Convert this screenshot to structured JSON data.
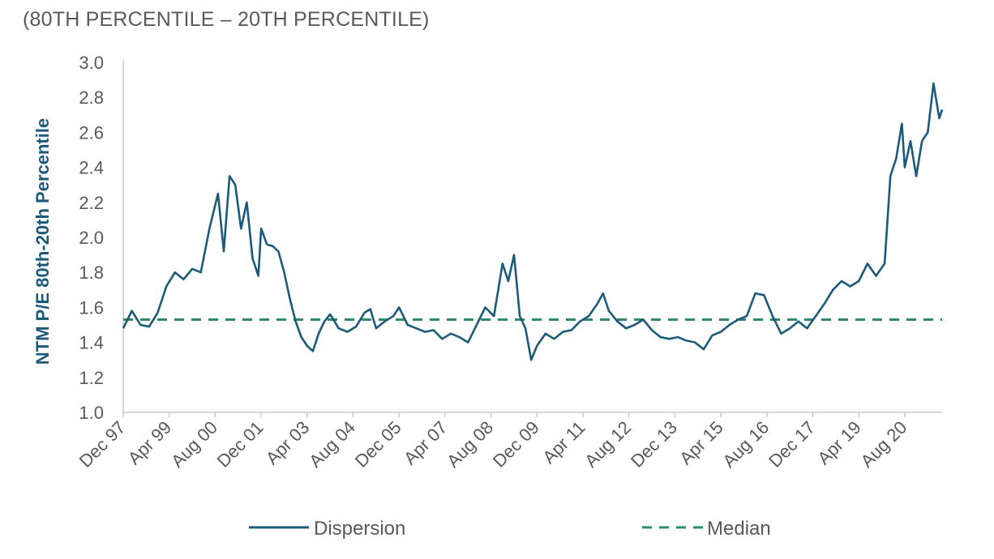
{
  "subtitle": "(80TH PERCENTILE – 20TH PERCENTILE)",
  "chart_data": {
    "type": "line",
    "title": "",
    "subtitle": "(80TH PERCENTILE – 20TH PERCENTILE)",
    "xlabel": "",
    "ylabel": "NTM P/E 80th-20th Percentile",
    "ylim": [
      1.0,
      3.0
    ],
    "yticks": [
      "1.0",
      "1.2",
      "1.4",
      "1.6",
      "1.8",
      "2.0",
      "2.2",
      "2.4",
      "2.6",
      "2.8",
      "3.0"
    ],
    "xticks": [
      "Dec 97",
      "Apr 99",
      "Aug 00",
      "Dec 01",
      "Apr 03",
      "Aug 04",
      "Dec 05",
      "Apr 07",
      "Aug 08",
      "Dec 09",
      "Apr 11",
      "Aug 12",
      "Dec 13",
      "Apr 15",
      "Aug 16",
      "Dec 17",
      "Apr 19",
      "Aug 20"
    ],
    "grid": false,
    "legend": "bottom",
    "colors": {
      "dispersion": "#1b5a7a",
      "median": "#2e8b6a"
    },
    "series": [
      {
        "name": "Dispersion",
        "style": "solid",
        "points": [
          [
            "Dec 97",
            1.48
          ],
          [
            "Mar 98",
            1.58
          ],
          [
            "Jun 98",
            1.5
          ],
          [
            "Sep 98",
            1.49
          ],
          [
            "Dec 98",
            1.57
          ],
          [
            "Mar 99",
            1.72
          ],
          [
            "Jun 99",
            1.8
          ],
          [
            "Sep 99",
            1.76
          ],
          [
            "Dec 99",
            1.82
          ],
          [
            "Mar 00",
            1.8
          ],
          [
            "Jun 00",
            2.05
          ],
          [
            "Sep 00",
            2.25
          ],
          [
            "Nov 00",
            1.92
          ],
          [
            "Jan 01",
            2.35
          ],
          [
            "Mar 01",
            2.3
          ],
          [
            "May 01",
            2.05
          ],
          [
            "Jul 01",
            2.2
          ],
          [
            "Sep 01",
            1.88
          ],
          [
            "Nov 01",
            1.78
          ],
          [
            "Dec 01",
            2.05
          ],
          [
            "Feb 02",
            1.96
          ],
          [
            "Apr 02",
            1.95
          ],
          [
            "Jun 02",
            1.92
          ],
          [
            "Aug 02",
            1.8
          ],
          [
            "Oct 02",
            1.65
          ],
          [
            "Dec 02",
            1.52
          ],
          [
            "Feb 03",
            1.43
          ],
          [
            "Apr 03",
            1.38
          ],
          [
            "Jun 03",
            1.35
          ],
          [
            "Aug 03",
            1.45
          ],
          [
            "Oct 03",
            1.52
          ],
          [
            "Dec 03",
            1.56
          ],
          [
            "Mar 04",
            1.48
          ],
          [
            "Jun 04",
            1.46
          ],
          [
            "Sep 04",
            1.49
          ],
          [
            "Dec 04",
            1.57
          ],
          [
            "Feb 05",
            1.59
          ],
          [
            "Apr 05",
            1.48
          ],
          [
            "Jul 05",
            1.52
          ],
          [
            "Oct 05",
            1.55
          ],
          [
            "Dec 05",
            1.6
          ],
          [
            "Mar 06",
            1.5
          ],
          [
            "Jun 06",
            1.48
          ],
          [
            "Sep 06",
            1.46
          ],
          [
            "Dec 06",
            1.47
          ],
          [
            "Mar 07",
            1.42
          ],
          [
            "Jun 07",
            1.45
          ],
          [
            "Sep 07",
            1.43
          ],
          [
            "Dec 07",
            1.4
          ],
          [
            "Mar 08",
            1.5
          ],
          [
            "Jun 08",
            1.6
          ],
          [
            "Sep 08",
            1.55
          ],
          [
            "Dec 08",
            1.85
          ],
          [
            "Feb 09",
            1.75
          ],
          [
            "Apr 09",
            1.9
          ],
          [
            "Jun 09",
            1.55
          ],
          [
            "Aug 09",
            1.48
          ],
          [
            "Oct 09",
            1.3
          ],
          [
            "Dec 09",
            1.38
          ],
          [
            "Mar 10",
            1.45
          ],
          [
            "Jun 10",
            1.42
          ],
          [
            "Sep 10",
            1.46
          ],
          [
            "Dec 10",
            1.47
          ],
          [
            "Mar 11",
            1.52
          ],
          [
            "Jun 11",
            1.55
          ],
          [
            "Sep 11",
            1.62
          ],
          [
            "Nov 11",
            1.68
          ],
          [
            "Jan 12",
            1.58
          ],
          [
            "Apr 12",
            1.52
          ],
          [
            "Jul 12",
            1.48
          ],
          [
            "Oct 12",
            1.5
          ],
          [
            "Jan 13",
            1.53
          ],
          [
            "Apr 13",
            1.47
          ],
          [
            "Jul 13",
            1.43
          ],
          [
            "Oct 13",
            1.42
          ],
          [
            "Jan 14",
            1.43
          ],
          [
            "Apr 14",
            1.41
          ],
          [
            "Jul 14",
            1.4
          ],
          [
            "Oct 14",
            1.36
          ],
          [
            "Jan 15",
            1.44
          ],
          [
            "Apr 15",
            1.46
          ],
          [
            "Jul 15",
            1.5
          ],
          [
            "Oct 15",
            1.53
          ],
          [
            "Jan 16",
            1.55
          ],
          [
            "Apr 16",
            1.68
          ],
          [
            "Jul 16",
            1.67
          ],
          [
            "Oct 16",
            1.55
          ],
          [
            "Jan 17",
            1.45
          ],
          [
            "Apr 17",
            1.48
          ],
          [
            "Jul 17",
            1.52
          ],
          [
            "Oct 17",
            1.48
          ],
          [
            "Jan 18",
            1.55
          ],
          [
            "Apr 18",
            1.62
          ],
          [
            "Jul 18",
            1.7
          ],
          [
            "Oct 18",
            1.75
          ],
          [
            "Jan 19",
            1.72
          ],
          [
            "Apr 19",
            1.75
          ],
          [
            "Jul 19",
            1.85
          ],
          [
            "Oct 19",
            1.78
          ],
          [
            "Jan 20",
            1.85
          ],
          [
            "Mar 20",
            2.35
          ],
          [
            "May 20",
            2.45
          ],
          [
            "Jul 20",
            2.65
          ],
          [
            "Aug 20",
            2.4
          ],
          [
            "Oct 20",
            2.55
          ],
          [
            "Dec 20",
            2.35
          ],
          [
            "Feb 21",
            2.55
          ],
          [
            "Apr 21",
            2.6
          ],
          [
            "Jun 21",
            2.88
          ],
          [
            "Aug 21",
            2.68
          ],
          [
            "Sep 21",
            2.73
          ]
        ]
      },
      {
        "name": "Median",
        "style": "dashed",
        "value": 1.53
      }
    ]
  }
}
